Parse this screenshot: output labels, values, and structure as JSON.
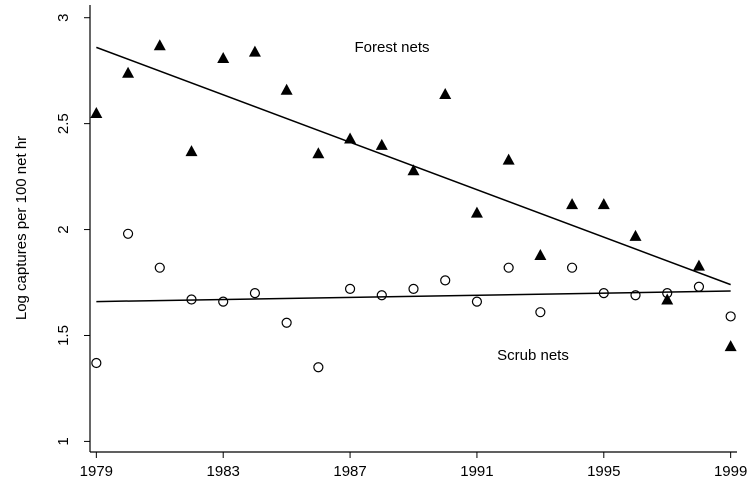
{
  "chart_data": {
    "type": "scatter",
    "ylabel": "Log captures per 100 net hr",
    "xlim": [
      1978.8,
      1999.2
    ],
    "xticks": [
      1979,
      1983,
      1987,
      1991,
      1995,
      1999
    ],
    "ylim": [
      0.95,
      3.06
    ],
    "yticks": [
      1,
      1.5,
      2,
      2.5,
      3
    ],
    "x": [
      1979,
      1980,
      1981,
      1982,
      1983,
      1984,
      1985,
      1986,
      1987,
      1988,
      1989,
      1990,
      1991,
      1992,
      1993,
      1994,
      1995,
      1996,
      1997,
      1998,
      1999
    ],
    "series": [
      {
        "name": "Forest nets",
        "color": "#000000",
        "marker": "triangle",
        "values": [
          2.55,
          2.74,
          2.87,
          2.37,
          2.81,
          2.84,
          2.66,
          2.36,
          2.43,
          2.4,
          2.28,
          2.64,
          2.08,
          2.33,
          1.88,
          2.12,
          2.12,
          1.97,
          1.67,
          1.83,
          1.45
        ],
        "trend": {
          "x": [
            1979,
            1999
          ],
          "values": [
            2.86,
            1.74
          ]
        }
      },
      {
        "name": "Scrub nets",
        "color": "#000000",
        "marker": "circle",
        "values": [
          1.37,
          1.98,
          1.82,
          1.67,
          1.66,
          1.7,
          1.56,
          1.35,
          1.72,
          1.69,
          1.72,
          1.76,
          1.66,
          1.82,
          1.61,
          1.82,
          1.7,
          1.69,
          1.7,
          1.73,
          1.59
        ],
        "trend": {
          "x": [
            1979,
            1999
          ],
          "values": [
            1.66,
            1.71
          ]
        }
      }
    ]
  }
}
